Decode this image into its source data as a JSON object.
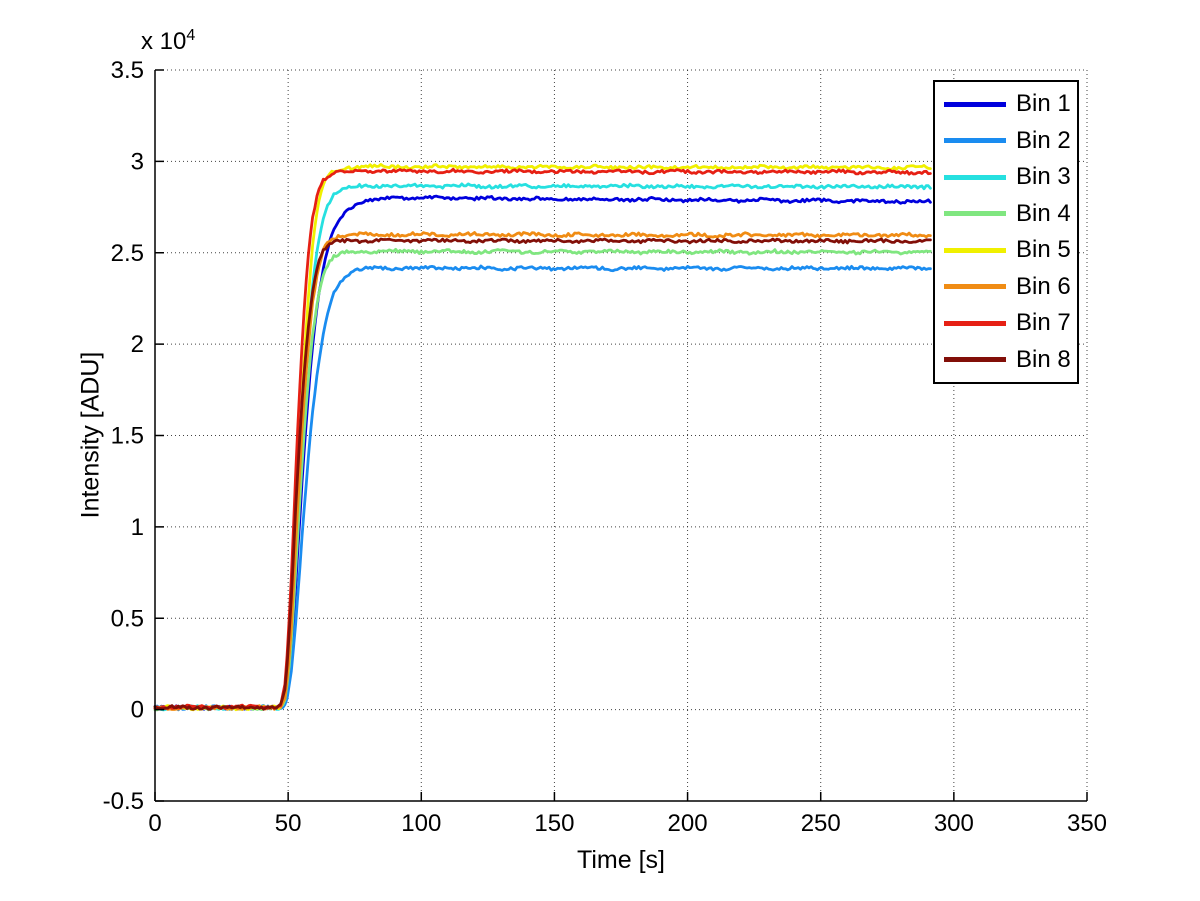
{
  "figure": {
    "xlabel": "Time [s]",
    "ylabel": "Intensity [ADU]",
    "y_axis_multiplier": {
      "base": "x 10",
      "exponent": "4"
    }
  },
  "legend": {
    "position": "upper right"
  },
  "chart_data": {
    "type": "line",
    "title": "",
    "xlabel": "Time [s]",
    "ylabel": "Intensity [ADU]",
    "y_multiplier_text": "x 10^4",
    "xlim": [
      0,
      350
    ],
    "ylim": [
      -5000,
      35000
    ],
    "xticks": [
      0,
      50,
      100,
      150,
      200,
      250,
      300,
      350
    ],
    "xtick_labels": [
      "0",
      "50",
      "100",
      "150",
      "200",
      "250",
      "300",
      "350"
    ],
    "yticks": [
      -5000,
      0,
      5000,
      10000,
      15000,
      20000,
      25000,
      30000,
      35000
    ],
    "ytick_labels": [
      "-0.5",
      "0",
      "0.5",
      "1",
      "1.5",
      "2",
      "2.5",
      "3",
      "3.5"
    ],
    "grid": true,
    "grid_style": "dotted",
    "legend_position": "upper right",
    "x": [
      0,
      5,
      10,
      15,
      20,
      25,
      30,
      35,
      40,
      45,
      47,
      49,
      51,
      53,
      55,
      57,
      59,
      61,
      63,
      65,
      67,
      70,
      73,
      76,
      80,
      85,
      90,
      100,
      120,
      150,
      200,
      250,
      292
    ],
    "series": [
      {
        "name": "Bin 1",
        "color": "#0000DD",
        "values": [
          100,
          100,
          100,
          100,
          100,
          100,
          100,
          100,
          100,
          100,
          100,
          400,
          2800,
          7200,
          12000,
          16300,
          19700,
          22200,
          24000,
          25300,
          26200,
          27000,
          27450,
          27700,
          27850,
          27950,
          28000,
          28000,
          27980,
          27950,
          27900,
          27850,
          27800
        ]
      },
      {
        "name": "Bin 2",
        "color": "#1A8CF0",
        "values": [
          100,
          100,
          100,
          100,
          100,
          100,
          100,
          100,
          100,
          100,
          100,
          250,
          1800,
          5000,
          9000,
          12800,
          16000,
          18500,
          20400,
          21800,
          22800,
          23500,
          23900,
          24050,
          24120,
          24150,
          24160,
          24160,
          24160,
          24150,
          24150,
          24150,
          24150
        ]
      },
      {
        "name": "Bin 3",
        "color": "#26E0E0",
        "values": [
          100,
          100,
          100,
          100,
          100,
          100,
          100,
          100,
          100,
          100,
          100,
          600,
          3800,
          9200,
          14800,
          19500,
          23000,
          25300,
          26800,
          27700,
          28200,
          28480,
          28580,
          28620,
          28650,
          28660,
          28660,
          28650,
          28650,
          28640,
          28630,
          28620,
          28620
        ]
      },
      {
        "name": "Bin 4",
        "color": "#80E680",
        "values": [
          100,
          100,
          100,
          100,
          100,
          100,
          100,
          100,
          100,
          100,
          100,
          500,
          3200,
          8000,
          13000,
          17200,
          20300,
          22400,
          23700,
          24400,
          24750,
          24950,
          25020,
          25050,
          25070,
          25070,
          25070,
          25060,
          25060,
          25050,
          25040,
          25040,
          25030
        ]
      },
      {
        "name": "Bin 5",
        "color": "#F0F000",
        "values": [
          100,
          100,
          100,
          100,
          100,
          100,
          100,
          100,
          100,
          100,
          100,
          800,
          4500,
          10500,
          16500,
          21500,
          25200,
          27400,
          28600,
          29200,
          29450,
          29600,
          29670,
          29700,
          29720,
          29720,
          29710,
          29700,
          29700,
          29690,
          29680,
          29670,
          29660
        ]
      },
      {
        "name": "Bin 6",
        "color": "#F08C14",
        "values": [
          100,
          100,
          100,
          100,
          100,
          100,
          100,
          100,
          100,
          100,
          100,
          700,
          4000,
          9500,
          14800,
          19000,
          22000,
          23900,
          25100,
          25600,
          25820,
          25940,
          25980,
          26000,
          26010,
          26010,
          26000,
          26000,
          25990,
          25980,
          25970,
          25960,
          25960
        ]
      },
      {
        "name": "Bin 7",
        "color": "#E62014",
        "values": [
          150,
          150,
          150,
          150,
          150,
          150,
          150,
          150,
          150,
          150,
          150,
          1500,
          6500,
          13500,
          19500,
          24000,
          26800,
          28300,
          29000,
          29250,
          29350,
          29420,
          29450,
          29470,
          29480,
          29480,
          29470,
          29460,
          29450,
          29440,
          29430,
          29420,
          29400
        ]
      },
      {
        "name": "Bin 8",
        "color": "#820F08",
        "values": [
          120,
          120,
          120,
          120,
          120,
          120,
          120,
          120,
          120,
          120,
          120,
          1200,
          5500,
          11500,
          16500,
          20200,
          22800,
          24300,
          25100,
          25400,
          25550,
          25620,
          25650,
          25660,
          25670,
          25670,
          25670,
          25670,
          25660,
          25660,
          25650,
          25650,
          25650
        ]
      }
    ]
  }
}
